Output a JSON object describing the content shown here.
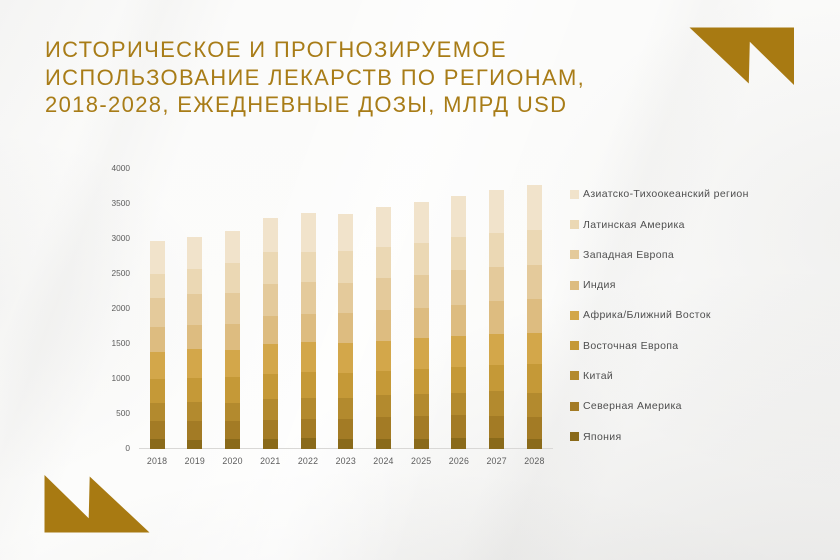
{
  "title": {
    "line1": "ИСТОРИЧЕСКОЕ И ПРОГНОЗИРУЕМОЕ",
    "line2": "ИСПОЛЬЗОВАНИЕ ЛЕКАРСТВ ПО РЕГИОНАМ,",
    "line3": "2018-2028, ЕЖЕДНЕВНЫЕ ДОЗЫ, МЛРД USD",
    "color": "#a87c17"
  },
  "decoration": {
    "name": "gold-double-triangle-flag",
    "color": "#a87a12"
  },
  "chart_data": {
    "type": "bar",
    "stacked": true,
    "title": "ИСТОРИЧЕСКОЕ И ПРОГНОЗИРУЕМОЕ ИСПОЛЬЗОВАНИЕ ЛЕКАРСТВ ПО РЕГИОНАМ, 2018-2028, ЕЖЕДНЕВНЫЕ ДОЗЫ, МЛРД USD",
    "categories": [
      "2018",
      "2019",
      "2020",
      "2021",
      "2022",
      "2023",
      "2024",
      "2025",
      "2026",
      "2027",
      "2028"
    ],
    "series": [
      {
        "name": "Азиатско-Тихоокеанский регион",
        "color": "#f1e3cb",
        "values": [
          475,
          455,
          465,
          490,
          560,
          530,
          570,
          595,
          590,
          615,
          645
        ]
      },
      {
        "name": "Латинская Америка",
        "color": "#ebd8b4",
        "values": [
          340,
          355,
          430,
          455,
          430,
          450,
          450,
          445,
          480,
          490,
          495
        ]
      },
      {
        "name": "Западная Европа",
        "color": "#e4ca9b",
        "values": [
          425,
          445,
          445,
          455,
          465,
          430,
          455,
          480,
          495,
          490,
          490
        ]
      },
      {
        "name": "Индия",
        "color": "#ddbc80",
        "values": [
          355,
          350,
          360,
          405,
          395,
          435,
          440,
          430,
          450,
          465,
          480
        ]
      },
      {
        "name": "Африка/Ближний Восток",
        "color": "#d3a74a",
        "values": [
          390,
          405,
          395,
          425,
          430,
          420,
          425,
          435,
          435,
          450,
          440
        ]
      },
      {
        "name": "Восточная Европа",
        "color": "#c59937",
        "values": [
          340,
          355,
          370,
          365,
          375,
          360,
          350,
          365,
          370,
          370,
          415
        ]
      },
      {
        "name": "Китай",
        "color": "#b38a2e",
        "values": [
          260,
          270,
          260,
          290,
          295,
          300,
          320,
          320,
          320,
          360,
          355
        ]
      },
      {
        "name": "Северная Америка",
        "color": "#a37b25",
        "values": [
          260,
          270,
          260,
          285,
          280,
          285,
          305,
          320,
          325,
          305,
          305
        ]
      },
      {
        "name": "Япония",
        "color": "#8a6a1a",
        "values": [
          130,
          120,
          130,
          130,
          145,
          140,
          140,
          140,
          155,
          155,
          140
        ]
      }
    ],
    "ylabel": "",
    "xlabel": "",
    "ylim": [
      0,
      4000
    ],
    "yticks": [
      0,
      500,
      1000,
      1500,
      2000,
      2500,
      3000,
      3500,
      4000
    ],
    "grid": false,
    "legend_position": "right"
  }
}
